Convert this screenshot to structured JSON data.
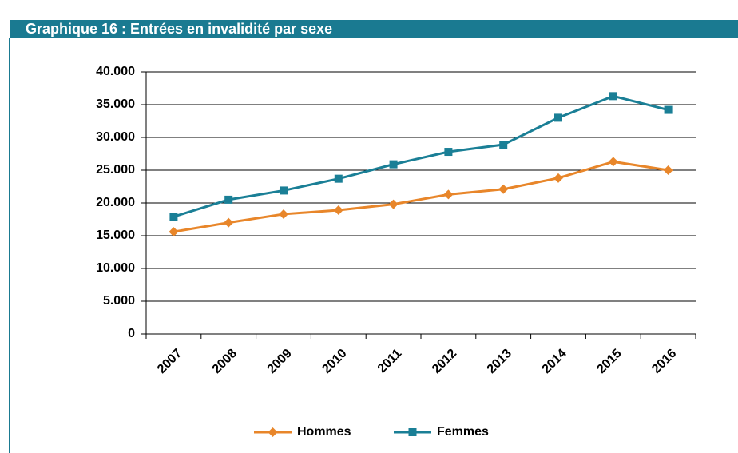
{
  "chart_data": {
    "type": "line",
    "title": "Graphique 16 : Entrées en invalidité par sexe",
    "categories": [
      "2007",
      "2008",
      "2009",
      "2010",
      "2011",
      "2012",
      "2013",
      "2014",
      "2015",
      "2016"
    ],
    "series": [
      {
        "name": "Hommes",
        "color": "#e8862a",
        "marker": "diamond",
        "values": [
          15600,
          17000,
          18300,
          18900,
          19800,
          21300,
          22100,
          23800,
          26300,
          25000
        ]
      },
      {
        "name": "Femmes",
        "color": "#1a7f96",
        "marker": "square",
        "values": [
          17900,
          20500,
          21900,
          23700,
          25900,
          27800,
          28900,
          33000,
          36300,
          34200
        ]
      }
    ],
    "ylim": [
      0,
      40000
    ],
    "yticks": [
      0,
      {
        "value": 5000,
        "label": "5.000"
      },
      {
        "value": 10000,
        "label": "10.000"
      },
      {
        "value": 15000,
        "label": "15.000"
      },
      {
        "value": 20000,
        "label": "20.000"
      },
      {
        "value": 25000,
        "label": "25.000"
      },
      {
        "value": 30000,
        "label": "30.000"
      },
      {
        "value": 35000,
        "label": "35.000"
      },
      {
        "value": 40000,
        "label": "40.000"
      }
    ],
    "grid": true,
    "legend": "bottom"
  }
}
